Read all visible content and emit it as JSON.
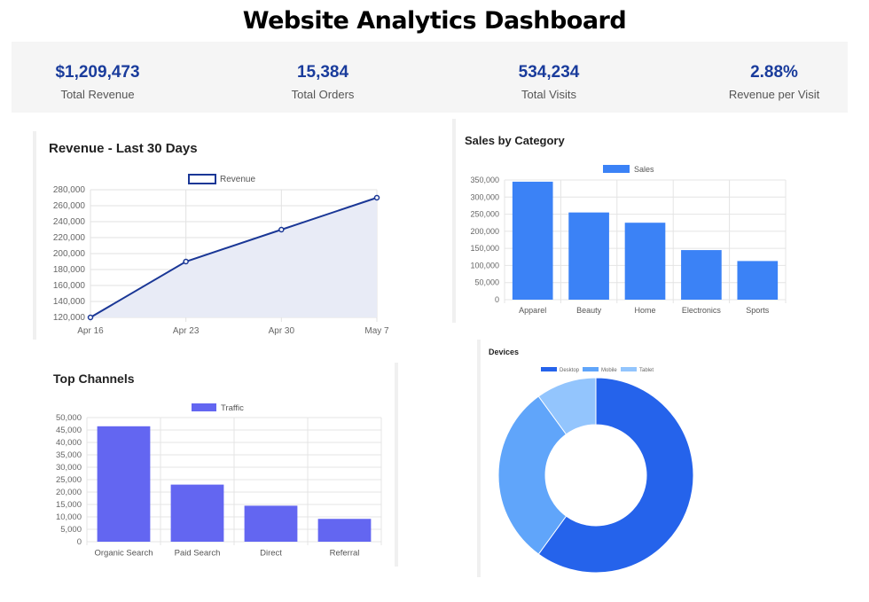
{
  "page": {
    "title": "Website Analytics Dashboard"
  },
  "kpis": [
    {
      "value": "$1,209,473",
      "label": "Total Revenue"
    },
    {
      "value": "15,384",
      "label": "Total Orders"
    },
    {
      "value": "534,234",
      "label": "Total Visits"
    },
    {
      "value": "2.88%",
      "label": "Revenue per Visit"
    }
  ],
  "colors": {
    "accent": "#1a3c9c",
    "line": "#1a3796",
    "line_fill": "#e8ebf6",
    "bar_blue": "#3b82f6",
    "bar_indigo": "#6366f1",
    "desktop": "#2563eb",
    "mobile": "#60a5fa",
    "tablet": "#93c5fd"
  },
  "chart_data": [
    {
      "type": "line",
      "title": "Revenue - Last 30 Days",
      "x": [
        "Apr 16",
        "Apr 23",
        "Apr 30",
        "May 7"
      ],
      "series": [
        {
          "name": "Revenue",
          "values": [
            120000,
            190000,
            230000,
            270000
          ]
        }
      ],
      "ylim": [
        120000,
        280000
      ],
      "yticks": [
        120000,
        140000,
        160000,
        180000,
        200000,
        220000,
        240000,
        260000,
        280000
      ],
      "ytick_labels": [
        "120,000",
        "140,000",
        "160,000",
        "180,000",
        "200,000",
        "220,000",
        "240,000",
        "260,000",
        "280,000"
      ],
      "grid": true,
      "legend": "top-center"
    },
    {
      "type": "bar",
      "title": "Sales by Category",
      "categories": [
        "Apparel",
        "Beauty",
        "Home",
        "Electronics",
        "Sports"
      ],
      "series": [
        {
          "name": "Sales",
          "values": [
            345000,
            255000,
            225000,
            145000,
            113000
          ]
        }
      ],
      "ylim": [
        0,
        350000
      ],
      "yticks": [
        0,
        50000,
        100000,
        150000,
        200000,
        250000,
        300000,
        350000
      ],
      "ytick_labels": [
        "0",
        "50,000",
        "100,000",
        "150,000",
        "200,000",
        "250,000",
        "300,000",
        "350,000"
      ],
      "grid": true,
      "legend": "top-center"
    },
    {
      "type": "bar",
      "title": "Top Channels",
      "categories": [
        "Organic Search",
        "Paid Search",
        "Direct",
        "Referral"
      ],
      "series": [
        {
          "name": "Traffic",
          "values": [
            46500,
            23000,
            14500,
            9200
          ]
        }
      ],
      "ylim": [
        0,
        50000
      ],
      "yticks": [
        0,
        5000,
        10000,
        15000,
        20000,
        25000,
        30000,
        35000,
        40000,
        45000,
        50000
      ],
      "ytick_labels": [
        "0",
        "5,000",
        "10,000",
        "15,000",
        "20,000",
        "25,000",
        "30,000",
        "35,000",
        "40,000",
        "45,000",
        "50,000"
      ],
      "grid": true,
      "legend": "top-center"
    },
    {
      "type": "pie",
      "subtype": "doughnut",
      "title": "Devices",
      "categories": [
        "Desktop",
        "Mobile",
        "Tablet"
      ],
      "values": [
        60,
        30,
        10
      ],
      "legend": "top-center"
    }
  ]
}
